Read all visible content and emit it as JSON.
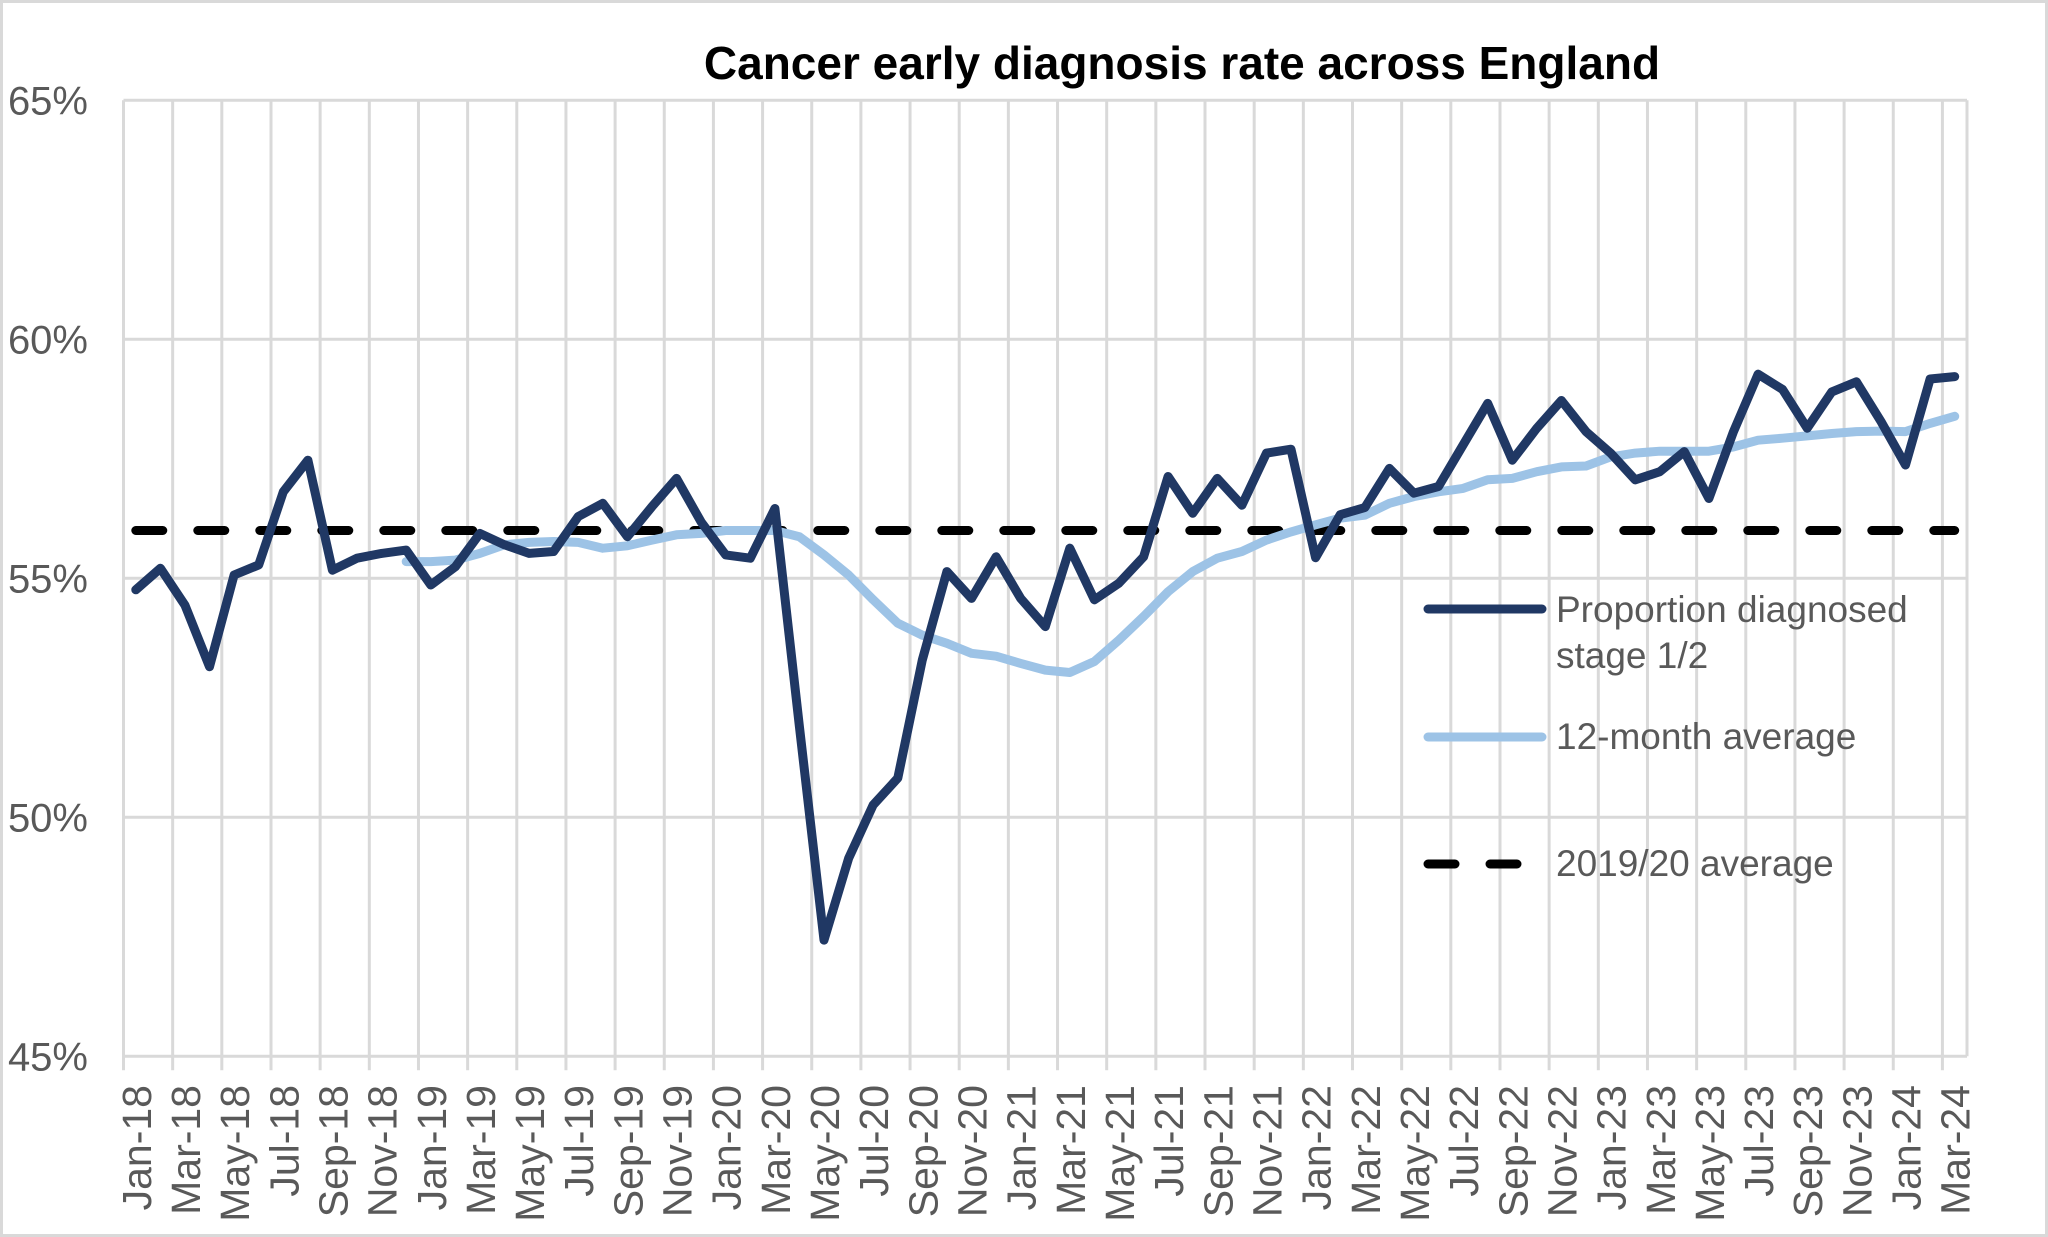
{
  "chart_data": {
    "type": "line",
    "title": "Cancer early diagnosis rate across England",
    "xlabel": "",
    "ylabel": "",
    "ylim": [
      45,
      65
    ],
    "yticks": [
      "45%",
      "50%",
      "55%",
      "60%",
      "65%"
    ],
    "ytick_values": [
      45,
      50,
      55,
      60,
      65
    ],
    "grid": "on",
    "legend_placement": "right",
    "categories": [
      "Jan-18",
      "Feb-18",
      "Mar-18",
      "Apr-18",
      "May-18",
      "Jun-18",
      "Jul-18",
      "Aug-18",
      "Sep-18",
      "Oct-18",
      "Nov-18",
      "Dec-18",
      "Jan-19",
      "Feb-19",
      "Mar-19",
      "Apr-19",
      "May-19",
      "Jun-19",
      "Jul-19",
      "Aug-19",
      "Sep-19",
      "Oct-19",
      "Nov-19",
      "Dec-19",
      "Jan-20",
      "Feb-20",
      "Mar-20",
      "Apr-20",
      "May-20",
      "Jun-20",
      "Jul-20",
      "Aug-20",
      "Sep-20",
      "Oct-20",
      "Nov-20",
      "Dec-20",
      "Jan-21",
      "Feb-21",
      "Mar-21",
      "Apr-21",
      "May-21",
      "Jun-21",
      "Jul-21",
      "Aug-21",
      "Sep-21",
      "Oct-21",
      "Nov-21",
      "Dec-21",
      "Jan-22",
      "Feb-22",
      "Mar-22",
      "Apr-22",
      "May-22",
      "Jun-22",
      "Jul-22",
      "Aug-22",
      "Sep-22",
      "Oct-22",
      "Nov-22",
      "Dec-22",
      "Jan-23",
      "Feb-23",
      "Mar-23",
      "Apr-23",
      "May-23",
      "Jun-23",
      "Jul-23",
      "Aug-23",
      "Sep-23",
      "Oct-23",
      "Nov-23",
      "Dec-23",
      "Jan-24",
      "Feb-24",
      "Mar-24"
    ],
    "series": [
      {
        "name": "Proportion diagnosed stage 1/2",
        "name_lines": [
          "Proportion diagnosed",
          "stage 1/2"
        ],
        "color": "#203864",
        "style": "solid",
        "values": [
          54.76,
          55.21,
          54.44,
          53.15,
          55.07,
          55.28,
          56.81,
          57.47,
          55.17,
          55.42,
          55.52,
          55.59,
          54.86,
          55.24,
          55.94,
          55.7,
          55.52,
          55.56,
          56.29,
          56.57,
          55.87,
          56.5,
          57.09,
          56.18,
          55.49,
          55.42,
          56.46,
          51.9,
          47.43,
          49.14,
          50.26,
          50.82,
          53.29,
          55.14,
          54.58,
          55.45,
          54.58,
          53.99,
          55.63,
          54.55,
          54.9,
          55.45,
          57.13,
          56.36,
          57.09,
          56.53,
          57.62,
          57.7,
          55.43,
          56.33,
          56.48,
          57.3,
          56.78,
          56.92,
          57.79,
          58.66,
          57.47,
          58.14,
          58.72,
          58.07,
          57.62,
          57.06,
          57.23,
          57.65,
          56.67,
          58.07,
          59.27,
          58.95,
          58.14,
          58.9,
          59.11,
          58.28,
          57.37,
          59.17,
          59.22
        ]
      },
      {
        "name": "12-month average",
        "color": "#9dc3e6",
        "style": "solid",
        "values": [
          null,
          null,
          null,
          null,
          null,
          null,
          null,
          null,
          null,
          null,
          null,
          55.35,
          55.35,
          55.38,
          55.52,
          55.7,
          55.75,
          55.77,
          55.75,
          55.63,
          55.68,
          55.8,
          55.91,
          55.94,
          56.0,
          56.0,
          56.0,
          55.87,
          55.49,
          55.07,
          54.55,
          54.06,
          53.81,
          53.64,
          53.43,
          53.37,
          53.22,
          53.08,
          53.03,
          53.26,
          53.71,
          54.2,
          54.72,
          55.14,
          55.42,
          55.56,
          55.8,
          55.97,
          56.12,
          56.26,
          56.32,
          56.57,
          56.71,
          56.81,
          56.88,
          57.06,
          57.09,
          57.23,
          57.33,
          57.35,
          57.54,
          57.62,
          57.66,
          57.66,
          57.66,
          57.75,
          57.89,
          57.93,
          57.98,
          58.03,
          58.07,
          58.08,
          58.07,
          58.24,
          58.39
        ]
      },
      {
        "name": "2019/20 average",
        "color": "#000000",
        "style": "dashed",
        "constant": 56.0
      }
    ]
  }
}
